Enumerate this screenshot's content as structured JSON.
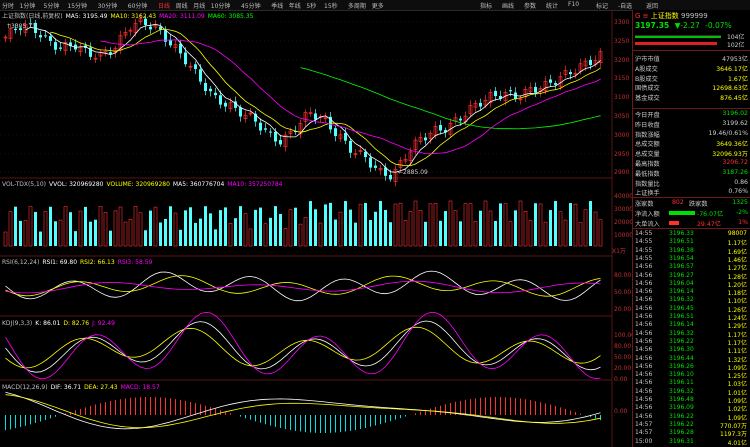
{
  "toolbar": {
    "periods": [
      "分时",
      "1分钟",
      "5分钟",
      "15分钟",
      "30分钟",
      "60分钟",
      "日线",
      "周线",
      "月线",
      "10分钟",
      "45分钟",
      "季线",
      "年线",
      "5秒",
      "15秒",
      "多周期",
      "更多"
    ],
    "active_period": "日线",
    "right_tabs": [
      "指标",
      "画线",
      "参数",
      "统计",
      "F10",
      "标记",
      "-自选",
      "返回"
    ]
  },
  "chart": {
    "main_title": "上证指数(日线,前复权)",
    "ma_legend": [
      {
        "label": "MA5: 3195.49",
        "color": "#ffffff"
      },
      {
        "label": "MA10: 3162.43",
        "color": "#ffff00"
      },
      {
        "label": "MA20: 3111.09",
        "color": "#ff00ff"
      },
      {
        "label": "MA60: 3085.35",
        "color": "#00ff00"
      }
    ],
    "high_marker": "3305.71",
    "low_marker": "2885.09",
    "price_axis": [
      "3300",
      "3250",
      "3200",
      "3150",
      "3100",
      "3050",
      "3000",
      "2950",
      "2900"
    ],
    "vol_legend": [
      {
        "label": "VOL-TDX(5,10)",
        "color": "#c0c0c0"
      },
      {
        "label": "VVOL: 320969280",
        "color": "#ffffff"
      },
      {
        "label": "VOLUME: 320969280",
        "color": "#ffff00"
      },
      {
        "label": "MA5: 360776704",
        "color": "#ffffff"
      },
      {
        "label": "MA10: 357250784",
        "color": "#ff00ff"
      }
    ],
    "vol_axis": [
      "40000",
      "30000",
      "20000",
      "10000"
    ],
    "vol_unit": "X1万",
    "rsi_legend": [
      {
        "label": "RSI(6,12,24)",
        "color": "#c0c0c0"
      },
      {
        "label": "RSI1: 69.80",
        "color": "#ffffff"
      },
      {
        "label": "RSI2: 66.13",
        "color": "#ffff00"
      },
      {
        "label": "RSI3: 58.59",
        "color": "#ff00ff"
      }
    ],
    "rsi_axis": [
      "80.00",
      "50.00",
      "20.00"
    ],
    "kdj_legend": [
      {
        "label": "KDJ(9,3,3)",
        "color": "#c0c0c0"
      },
      {
        "label": "K: 86.01",
        "color": "#ffffff"
      },
      {
        "label": "D: 82.76",
        "color": "#ffff00"
      },
      {
        "label": "J: 92.49",
        "color": "#ff00ff"
      }
    ],
    "kdj_axis": [
      "100.00",
      "80.00",
      "50.00",
      "20.00",
      "0.00"
    ],
    "macd_legend": [
      {
        "label": "MACD(12,26,9)",
        "color": "#c0c0c0"
      },
      {
        "label": "DIF: 36.71",
        "color": "#ffffff"
      },
      {
        "label": "DEA: 27.43",
        "color": "#ffff00"
      },
      {
        "label": "MACD: 18.57",
        "color": "#ff00ff"
      }
    ],
    "macd_axis": [
      "0.00"
    ]
  },
  "quote": {
    "code": "999999",
    "name": "上证指数",
    "price": "3197.35",
    "change": "▼-2.27",
    "change_pct": "-0.07%",
    "bar1_value": "104亿",
    "bar2_value": "102亿",
    "rows_a": [
      {
        "label": "沪市市值",
        "value": "47953亿",
        "color": "#d0d0d0"
      },
      {
        "label": "A股成交",
        "value": "3646.17亿",
        "color": "#ffff00"
      },
      {
        "label": "B股成交",
        "value": "1.67亿",
        "color": "#ffff00"
      },
      {
        "label": "国债成交",
        "value": "12698.63亿",
        "color": "#ffff00"
      },
      {
        "label": "基金成交",
        "value": "876.45亿",
        "color": "#ffff00"
      }
    ],
    "rows_b": [
      {
        "label": "今日开盘",
        "value": "3196.02",
        "color": "#00e000"
      },
      {
        "label": "昨日收盘",
        "value": "3199.62",
        "color": "#d0d0d0"
      },
      {
        "label": "指数涨幅",
        "value": "19.46/0.61%",
        "color": "#d0d0d0"
      },
      {
        "label": "总成交额",
        "value": "3649.36亿",
        "color": "#ffff00"
      },
      {
        "label": "总成交量",
        "value": "32096.93万",
        "color": "#ffff00"
      },
      {
        "label": "最高指数",
        "value": "3206.72",
        "color": "#ff3030"
      },
      {
        "label": "最低指数",
        "value": "3187.26",
        "color": "#00e000"
      },
      {
        "label": "指数量比",
        "value": "0.86",
        "color": "#d0d0d0"
      },
      {
        "label": "上证换手",
        "value": "0.76%",
        "color": "#d0d0d0"
      }
    ],
    "updown": {
      "up_label": "涨家数",
      "up": "802",
      "down_label": "跌家数",
      "down": "1325"
    },
    "flows": [
      {
        "label": "净流入额",
        "value": "-76.07亿",
        "pct": "-2%",
        "color": "#00e000"
      },
      {
        "label": "大单流入",
        "value": "29.47亿",
        "pct": "1%",
        "color": "#ff3030"
      }
    ]
  },
  "ticks": [
    {
      "time": "14:55",
      "price": "3196.33",
      "vol": "98007"
    },
    {
      "time": "14:55",
      "price": "3196.51",
      "vol": "1.17亿"
    },
    {
      "time": "14:55",
      "price": "3196.38",
      "vol": "1.69亿"
    },
    {
      "time": "14:55",
      "price": "3196.54",
      "vol": "1.46亿"
    },
    {
      "time": "14:56",
      "price": "3196.57",
      "vol": "1.27亿"
    },
    {
      "time": "14:56",
      "price": "3196.27",
      "vol": "1.28亿"
    },
    {
      "time": "14:56",
      "price": "3196.04",
      "vol": "1.20亿"
    },
    {
      "time": "14:56",
      "price": "3196.14",
      "vol": "1.18亿"
    },
    {
      "time": "14:56",
      "price": "3196.32",
      "vol": "1.10亿"
    },
    {
      "time": "14:56",
      "price": "3196.45",
      "vol": "1.26亿"
    },
    {
      "time": "14:56",
      "price": "3196.51",
      "vol": "1.24亿"
    },
    {
      "time": "14:56",
      "price": "3196.14",
      "vol": "1.29亿"
    },
    {
      "time": "14:56",
      "price": "3196.32",
      "vol": "1.17亿"
    },
    {
      "time": "14:56",
      "price": "3196.22",
      "vol": "1.17亿"
    },
    {
      "time": "14:56",
      "price": "3196.30",
      "vol": "1.11亿"
    },
    {
      "time": "14:56",
      "price": "3196.44",
      "vol": "1.32亿"
    },
    {
      "time": "14:56",
      "price": "3196.26",
      "vol": "1.09亿"
    },
    {
      "time": "14:56",
      "price": "3196.10",
      "vol": "1.25亿"
    },
    {
      "time": "14:56",
      "price": "3196.11",
      "vol": "1.03亿"
    },
    {
      "time": "14:56",
      "price": "3196.32",
      "vol": "1.01亿"
    },
    {
      "time": "14:56",
      "price": "3196.48",
      "vol": "1.09亿"
    },
    {
      "time": "14:56",
      "price": "3196.09",
      "vol": "1.02亿"
    },
    {
      "time": "14:56",
      "price": "3196.22",
      "vol": "1.09亿"
    },
    {
      "time": "14:57",
      "price": "3196.22",
      "vol": "770.07万"
    },
    {
      "time": "14:57",
      "price": "3196.28",
      "vol": "1197.3万"
    },
    {
      "time": "15:00",
      "price": "3196.31",
      "vol": "4.01亿"
    }
  ]
}
